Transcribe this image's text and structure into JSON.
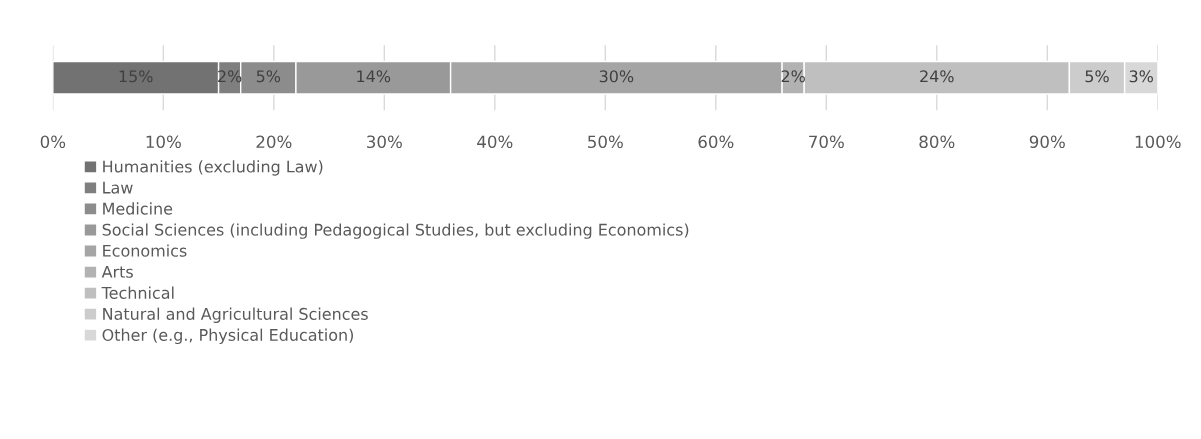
{
  "chart_data": {
    "type": "bar",
    "orientation": "horizontal",
    "stacked": true,
    "categories": [
      null
    ],
    "series": [
      {
        "name": "Humanities (excluding Law)",
        "color": "#727272",
        "values": [
          15
        ],
        "value_labels": [
          "15%"
        ]
      },
      {
        "name": "Law",
        "color": "#7f7f7f",
        "values": [
          2
        ],
        "value_labels": [
          "2%"
        ]
      },
      {
        "name": "Medicine",
        "color": "#8c8c8c",
        "values": [
          5
        ],
        "value_labels": [
          "5%"
        ]
      },
      {
        "name": "Social Sciences (including Pedagogical Studies, but excluding Economics)",
        "color": "#999999",
        "values": [
          14
        ],
        "value_labels": [
          "14%"
        ]
      },
      {
        "name": "Economics",
        "color": "#a5a5a5",
        "values": [
          30
        ],
        "value_labels": [
          "30%"
        ]
      },
      {
        "name": "Arts",
        "color": "#b2b2b2",
        "values": [
          2
        ],
        "value_labels": [
          "2%"
        ]
      },
      {
        "name": "Technical",
        "color": "#bfbfbf",
        "values": [
          24
        ],
        "value_labels": [
          "24%"
        ]
      },
      {
        "name": "Natural and Agricultural Sciences",
        "color": "#cccccc",
        "values": [
          5
        ],
        "value_labels": [
          "5%"
        ]
      },
      {
        "name": "Other (e.g., Physical Education)",
        "color": "#d8d8d8",
        "values": [
          3
        ],
        "value_labels": [
          "3%"
        ]
      }
    ],
    "xlim": [
      0,
      100
    ],
    "xticks": [
      {
        "value": 0,
        "label": "0%"
      },
      {
        "value": 10,
        "label": "10%"
      },
      {
        "value": 20,
        "label": "20%"
      },
      {
        "value": 30,
        "label": "30%"
      },
      {
        "value": 40,
        "label": "40%"
      },
      {
        "value": 50,
        "label": "50%"
      },
      {
        "value": 60,
        "label": "60%"
      },
      {
        "value": 70,
        "label": "70%"
      },
      {
        "value": 80,
        "label": "80%"
      },
      {
        "value": 90,
        "label": "90%"
      },
      {
        "value": 100,
        "label": "100%"
      }
    ],
    "grid": "x",
    "legend": "bottom left"
  }
}
